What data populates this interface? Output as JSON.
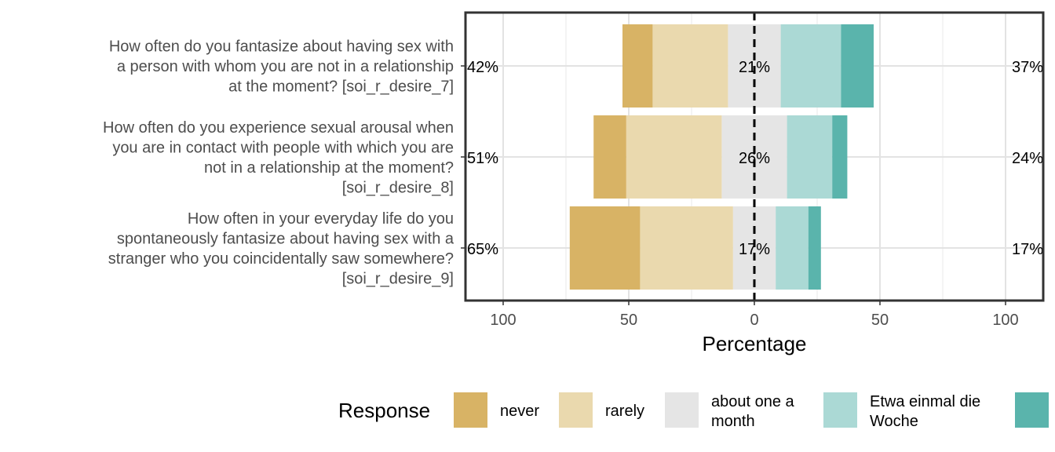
{
  "chart_data": {
    "type": "bar",
    "subtype": "diverging-stacked-likert",
    "xlabel": "Percentage",
    "xlim": [
      -100,
      100
    ],
    "x_ticks": [
      -100,
      -50,
      0,
      50,
      100
    ],
    "x_tick_labels": [
      "100",
      "50",
      "0",
      "50",
      "100"
    ],
    "grid": true,
    "legend_title": "Response",
    "legend_position": "bottom",
    "categories": [
      "How often do you fantasize about having sex with a person with whom you are not in a relationship at the moment? [soi_r_desire_7]",
      "How often do you experience sexual arousal when you are in contact with people with which you are not in a relationship at the moment? [soi_r_desire_8]",
      "How often in your everyday life do you spontaneously fantasize about having sex with a stranger who you coincidentally saw somewhere? [soi_r_desire_9]"
    ],
    "category_label_lines": [
      [
        "How often do you fantasize about having sex with",
        "a person with whom you are not in a relationship",
        "at the moment? [soi_r_desire_7]"
      ],
      [
        "How often do you experience sexual arousal when",
        "you are in contact with people with which you are",
        "not in a relationship at the moment?",
        "[soi_r_desire_8]"
      ],
      [
        "How often in your everyday life do you",
        "spontaneously fantasize about having sex with a",
        "stranger who you coincidentally saw somewhere?",
        "[soi_r_desire_9]"
      ]
    ],
    "series": [
      {
        "name": "never",
        "color": "#D8B365",
        "values": [
          12,
          13,
          28
        ]
      },
      {
        "name": "rarely",
        "color": "#EAD9AE",
        "values": [
          30,
          38,
          37
        ]
      },
      {
        "name": "about one a month",
        "legend_lines": [
          "about one a",
          "month"
        ],
        "color": "#E5E5E5",
        "values": [
          21,
          26,
          17
        ]
      },
      {
        "name": "Etwa einmal die Woche",
        "legend_lines": [
          "Etwa einmal die",
          "Woche"
        ],
        "color": "#ABD9D5",
        "values": [
          24,
          18,
          13
        ]
      },
      {
        "name": "",
        "color": "#5AB4AC",
        "values": [
          13,
          6,
          5
        ]
      }
    ],
    "low_percent_labels": [
      "42%",
      "51%",
      "65%"
    ],
    "neutral_percent_labels": [
      "21%",
      "26%",
      "17%"
    ],
    "high_percent_labels": [
      "37%",
      "24%",
      "17%"
    ]
  }
}
